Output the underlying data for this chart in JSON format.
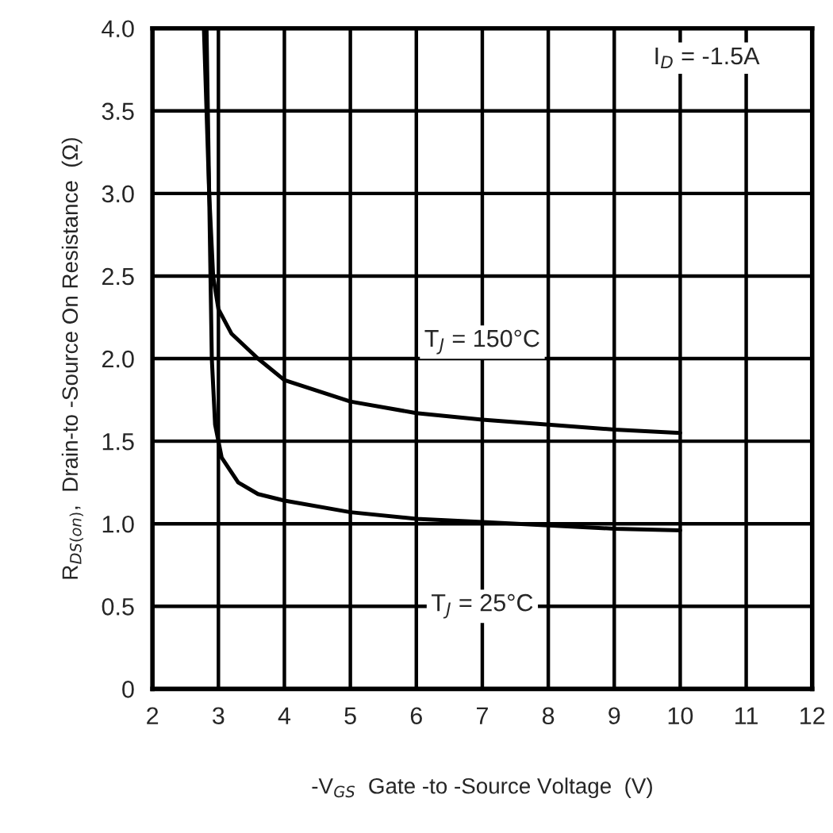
{
  "chart_data": {
    "type": "line",
    "xlabel": "-V$_{GS}$  Gate -to -Source Voltage  (V)",
    "ylabel": "R$_{DS(on)}$,  Drain-to -Source On Resistance  (Ω)",
    "series": [
      {
        "color": "#000000",
        "x": [
          2.78,
          2.82,
          2.86,
          2.92,
          3.0,
          3.2,
          3.6,
          4,
          5,
          6,
          7,
          8,
          9,
          10
        ],
        "values": [
          4.0,
          3.5,
          3.0,
          2.5,
          2.3,
          2.15,
          2.0,
          1.87,
          1.74,
          1.67,
          1.63,
          1.6,
          1.57,
          1.55
        ]
      },
      {
        "color": "#000000",
        "x": [
          2.82,
          2.86,
          2.9,
          2.95,
          3.05,
          3.3,
          3.6,
          4,
          5,
          6,
          7,
          8,
          9,
          10
        ],
        "values": [
          4.0,
          3.0,
          2.0,
          1.6,
          1.4,
          1.25,
          1.18,
          1.14,
          1.07,
          1.03,
          1.01,
          0.99,
          0.97,
          0.96
        ]
      }
    ],
    "xlim": [
      2,
      12
    ],
    "xticks": [
      2,
      3,
      4,
      5,
      6,
      7,
      8,
      9,
      10,
      11,
      12
    ],
    "ylim": [
      0,
      4.0
    ],
    "yticks": [
      0,
      0.5,
      {
        "value": 1,
        "label": "1.0"
      },
      1.5,
      {
        "value": 2,
        "label": "2.0"
      },
      2.5,
      {
        "value": 3,
        "label": "3.0"
      },
      3.5,
      {
        "value": 4,
        "label": "4.0"
      }
    ],
    "grid": true,
    "marker": "none",
    "line_style": "solid",
    "annotations": [
      "I$_{D}$ = -1.5A",
      "T$_{J}$ = 150°C",
      "T$_{J}$ = 25°C"
    ]
  }
}
